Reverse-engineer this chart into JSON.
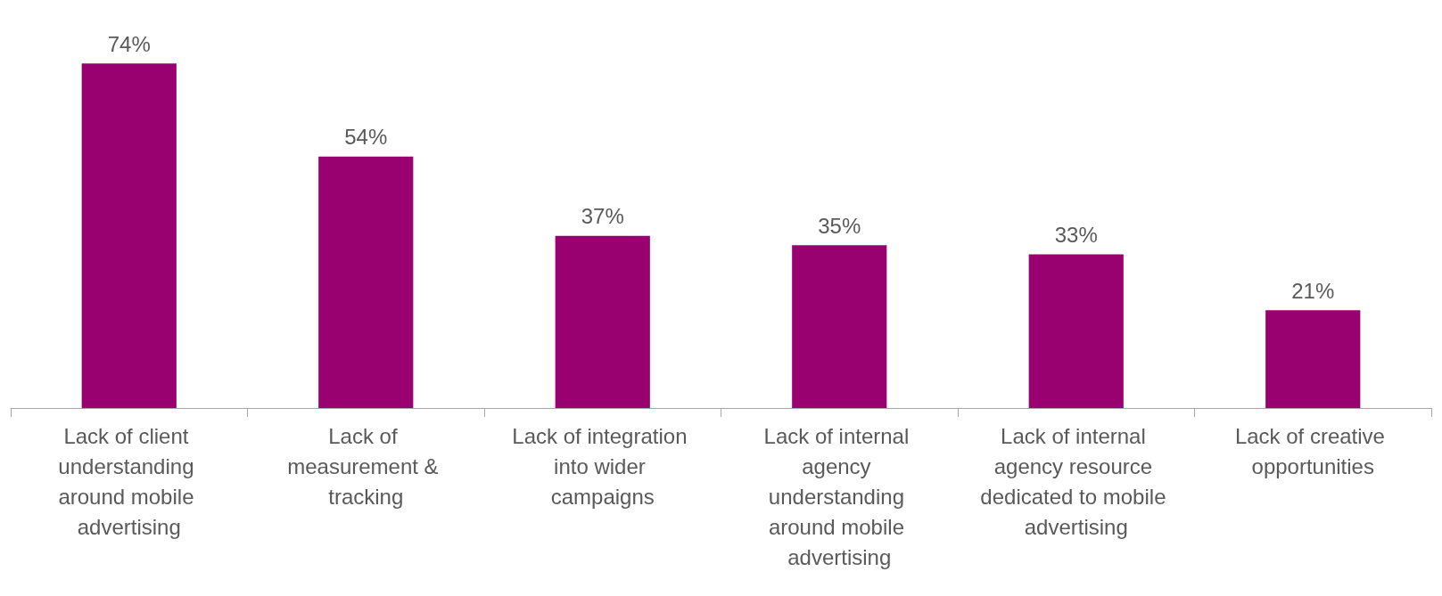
{
  "chart_data": {
    "type": "bar",
    "categories": [
      "Lack of client understanding around mobile advertising",
      "Lack of measurement & tracking",
      "Lack of integration into wider campaigns",
      "Lack of internal agency understanding around mobile advertising",
      "Lack of internal agency resource dedicated to mobile advertising",
      "Lack of creative opportunities"
    ],
    "values": [
      74,
      54,
      37,
      35,
      33,
      21
    ],
    "value_labels": [
      "74%",
      "54%",
      "37%",
      "35%",
      "33%",
      "21%"
    ],
    "color": "#990070"
  }
}
